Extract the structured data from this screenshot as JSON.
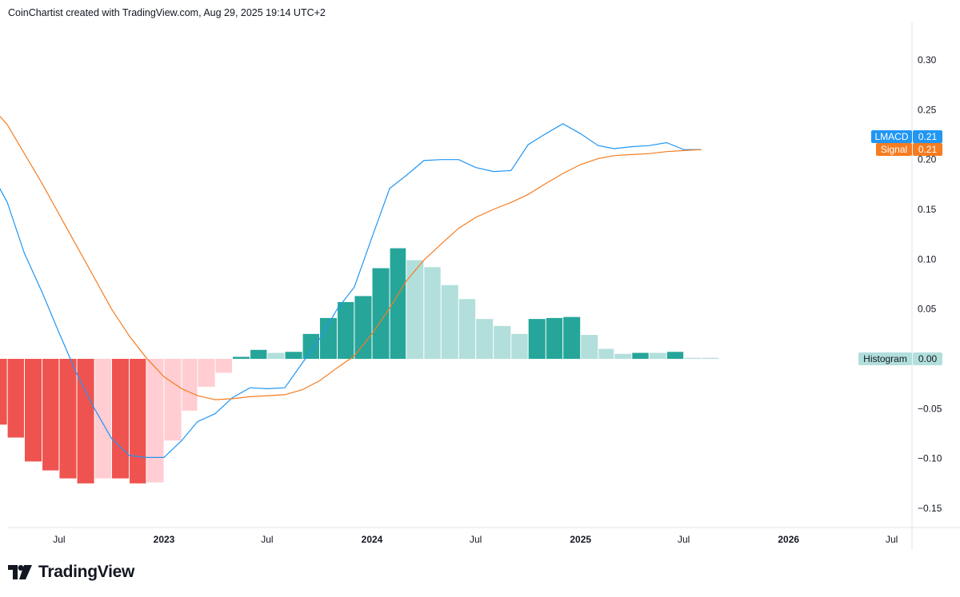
{
  "header": {
    "attribution": "CoinChartist created with TradingView.com, Aug 29, 2025 19:14 UTC+2"
  },
  "branding": {
    "logo_text": "TradingView",
    "logo_icon": "tradingview-logo-icon"
  },
  "colors": {
    "lmacd": "#2196f3",
    "signal": "#f57c20",
    "hist_pos_rising": "#26a69a",
    "hist_pos_falling": "#b2dfdb",
    "hist_neg_falling": "#ef5350",
    "hist_neg_rising": "#ffcdd2"
  },
  "chart_data": {
    "type": "line",
    "title": "",
    "ylim": [
      -0.17,
      0.34
    ],
    "y_ticks": [
      "0.30",
      "0.25",
      "0.20",
      "0.15",
      "0.10",
      "0.05",
      "0.00",
      "−0.05",
      "−0.10",
      "−0.15"
    ],
    "y_tick_values": [
      0.3,
      0.25,
      0.2,
      0.15,
      0.1,
      0.05,
      0.0,
      -0.05,
      -0.1,
      -0.15
    ],
    "x_range": [
      "2022-03-01",
      "2026-09-30"
    ],
    "x_ticks": [
      {
        "label": "Jul",
        "date": "2022-07-01",
        "bold": false
      },
      {
        "label": "2023",
        "date": "2023-01-01",
        "bold": true
      },
      {
        "label": "Jul",
        "date": "2023-07-01",
        "bold": false
      },
      {
        "label": "2024",
        "date": "2024-01-01",
        "bold": true
      },
      {
        "label": "Jul",
        "date": "2024-07-01",
        "bold": false
      },
      {
        "label": "2025",
        "date": "2025-01-01",
        "bold": true
      },
      {
        "label": "Jul",
        "date": "2025-07-01",
        "bold": false
      },
      {
        "label": "2026",
        "date": "2026-01-01",
        "bold": true
      },
      {
        "label": "Jul",
        "date": "2026-07-01",
        "bold": false
      }
    ],
    "grid": false,
    "x": [
      "2022-03",
      "2022-04",
      "2022-05",
      "2022-06",
      "2022-07",
      "2022-08",
      "2022-09",
      "2022-10",
      "2022-11",
      "2022-12",
      "2023-01",
      "2023-02",
      "2023-03",
      "2023-04",
      "2023-05",
      "2023-06",
      "2023-07",
      "2023-08",
      "2023-09",
      "2023-10",
      "2023-11",
      "2023-12",
      "2024-01",
      "2024-02",
      "2024-03",
      "2024-04",
      "2024-05",
      "2024-06",
      "2024-07",
      "2024-08",
      "2024-09",
      "2024-10",
      "2024-11",
      "2024-12",
      "2025-01",
      "2025-02",
      "2025-03",
      "2025-04",
      "2025-05",
      "2025-06",
      "2025-07",
      "2025-08"
    ],
    "series": [
      {
        "name": "LMACD",
        "last_value": "0.21",
        "values": [
          0.19,
          0.157,
          0.106,
          0.067,
          0.026,
          -0.015,
          -0.05,
          -0.08,
          -0.097,
          -0.099,
          -0.099,
          -0.082,
          -0.063,
          -0.055,
          -0.039,
          -0.029,
          -0.03,
          -0.029,
          -0.004,
          0.02,
          0.05,
          0.072,
          0.122,
          0.171,
          0.184,
          0.199,
          0.2,
          0.2,
          0.192,
          0.188,
          0.189,
          0.215,
          0.226,
          0.236,
          0.226,
          0.214,
          0.211,
          0.213,
          0.214,
          0.217,
          0.21,
          0.21
        ]
      },
      {
        "name": "Signal",
        "last_value": "0.21",
        "values": [
          0.255,
          0.235,
          0.206,
          0.176,
          0.145,
          0.113,
          0.081,
          0.05,
          0.023,
          0.001,
          -0.018,
          -0.03,
          -0.037,
          -0.041,
          -0.04,
          -0.038,
          -0.037,
          -0.036,
          -0.031,
          -0.022,
          -0.009,
          0.003,
          0.025,
          0.051,
          0.078,
          0.099,
          0.115,
          0.131,
          0.142,
          0.15,
          0.157,
          0.165,
          0.176,
          0.186,
          0.195,
          0.201,
          0.204,
          0.205,
          0.206,
          0.208,
          0.209,
          0.21
        ]
      },
      {
        "name": "Histogram",
        "last_value": "0.00",
        "type": "bar",
        "values": [
          -0.066,
          -0.079,
          -0.103,
          -0.112,
          -0.12,
          -0.125,
          -0.12,
          -0.12,
          -0.125,
          -0.124,
          -0.082,
          -0.052,
          -0.028,
          -0.014,
          0.002,
          0.009,
          0.006,
          0.007,
          0.025,
          0.041,
          0.057,
          0.063,
          0.091,
          0.111,
          0.099,
          0.092,
          0.074,
          0.06,
          0.04,
          0.033,
          0.025,
          0.04,
          0.041,
          0.042,
          0.024,
          0.01,
          0.005,
          0.006,
          0.006,
          0.007,
          0.001,
          0.001
        ],
        "color_keys": [
          "neg_fall",
          "neg_fall",
          "neg_fall",
          "neg_fall",
          "neg_fall",
          "neg_fall",
          "neg_rise",
          "neg_fall",
          "neg_fall",
          "neg_rise",
          "neg_rise",
          "neg_rise",
          "neg_rise",
          "neg_rise",
          "pos_rise",
          "pos_rise",
          "pos_fall",
          "pos_rise",
          "pos_rise",
          "pos_rise",
          "pos_rise",
          "pos_rise",
          "pos_rise",
          "pos_rise",
          "pos_fall",
          "pos_fall",
          "pos_fall",
          "pos_fall",
          "pos_fall",
          "pos_fall",
          "pos_fall",
          "pos_rise",
          "pos_rise",
          "pos_rise",
          "pos_fall",
          "pos_fall",
          "pos_fall",
          "pos_rise",
          "pos_fall",
          "pos_rise",
          "pos_fall",
          "pos_fall"
        ]
      }
    ]
  }
}
